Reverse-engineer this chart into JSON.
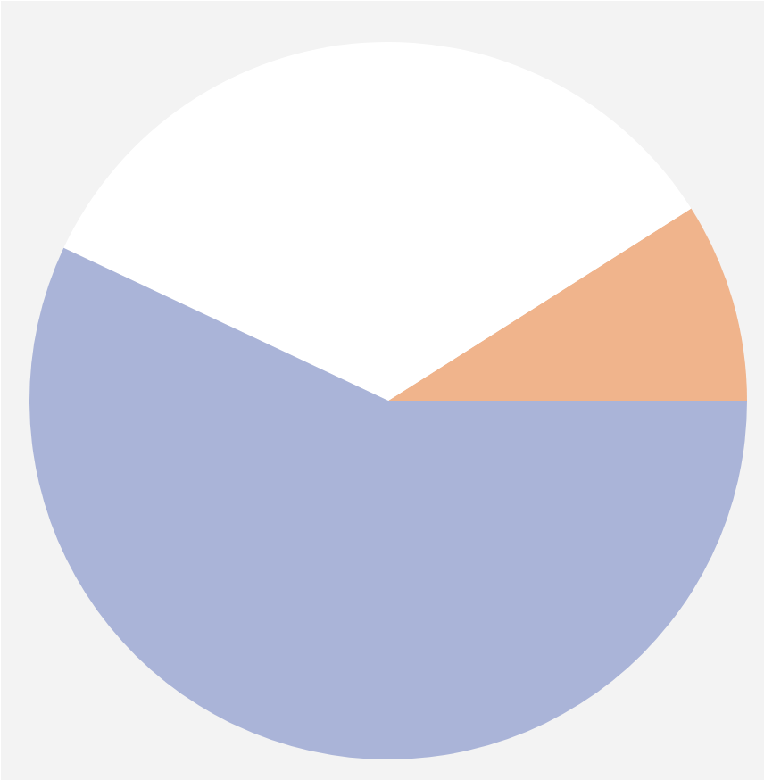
{
  "chart_data": {
    "type": "pie",
    "categories": [
      null,
      null,
      null
    ],
    "values": [
      9,
      34,
      57
    ],
    "colors": [
      "#f0b48c",
      "#ffffff",
      "#aab4d8"
    ]
  }
}
